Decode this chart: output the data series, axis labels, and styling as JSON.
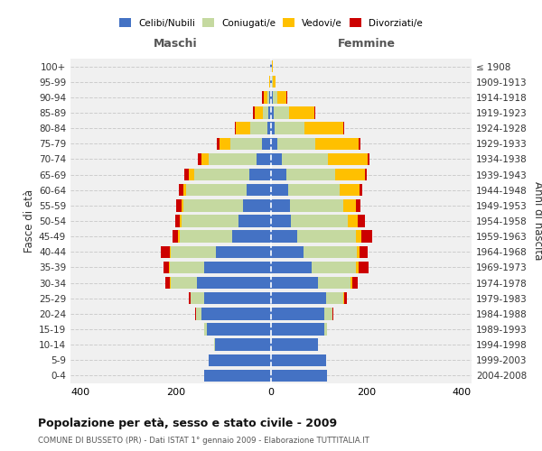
{
  "age_groups_bottom_to_top": [
    "0-4",
    "5-9",
    "10-14",
    "15-19",
    "20-24",
    "25-29",
    "30-34",
    "35-39",
    "40-44",
    "45-49",
    "50-54",
    "55-59",
    "60-64",
    "65-69",
    "70-74",
    "75-79",
    "80-84",
    "85-89",
    "90-94",
    "95-99",
    "100+"
  ],
  "birth_years_bottom_to_top": [
    "2004-2008",
    "1999-2003",
    "1994-1998",
    "1989-1993",
    "1984-1988",
    "1979-1983",
    "1974-1978",
    "1969-1973",
    "1964-1968",
    "1959-1963",
    "1954-1958",
    "1949-1953",
    "1944-1948",
    "1939-1943",
    "1934-1938",
    "1929-1933",
    "1924-1928",
    "1919-1923",
    "1914-1918",
    "1909-1913",
    "≤ 1908"
  ],
  "colors": {
    "celibi": "#4472c4",
    "coniugati": "#c5d9a0",
    "vedovi": "#ffc000",
    "divorziati": "#cc0000"
  },
  "maschi": {
    "celibi": [
      140,
      130,
      118,
      135,
      145,
      140,
      155,
      140,
      115,
      82,
      68,
      58,
      52,
      45,
      30,
      18,
      8,
      5,
      4,
      2,
      2
    ],
    "coniugati": [
      0,
      0,
      2,
      5,
      12,
      28,
      55,
      72,
      95,
      110,
      120,
      125,
      125,
      115,
      100,
      68,
      35,
      12,
      4,
      0,
      0
    ],
    "vedovi": [
      0,
      0,
      0,
      0,
      0,
      0,
      2,
      2,
      2,
      3,
      4,
      5,
      6,
      12,
      16,
      22,
      30,
      18,
      8,
      1,
      0
    ],
    "divorziati": [
      0,
      0,
      0,
      0,
      2,
      5,
      10,
      12,
      18,
      12,
      8,
      10,
      10,
      10,
      8,
      6,
      3,
      3,
      2,
      0,
      0
    ]
  },
  "femmine": {
    "celibi": [
      118,
      115,
      98,
      112,
      112,
      115,
      98,
      85,
      68,
      55,
      42,
      40,
      36,
      32,
      22,
      14,
      8,
      6,
      4,
      2,
      1
    ],
    "coniugati": [
      0,
      0,
      0,
      5,
      16,
      36,
      68,
      92,
      112,
      122,
      118,
      112,
      108,
      102,
      98,
      78,
      62,
      32,
      10,
      2,
      0
    ],
    "vedovi": [
      0,
      0,
      0,
      0,
      0,
      2,
      5,
      6,
      6,
      12,
      22,
      26,
      42,
      62,
      82,
      92,
      82,
      52,
      18,
      6,
      2
    ],
    "divorziati": [
      0,
      0,
      0,
      0,
      2,
      5,
      10,
      22,
      16,
      22,
      15,
      10,
      5,
      5,
      5,
      3,
      2,
      2,
      2,
      0,
      0
    ]
  },
  "title": "Popolazione per età, sesso e stato civile - 2009",
  "subtitle": "COMUNE DI BUSSETO (PR) - Dati ISTAT 1° gennaio 2009 - Elaborazione TUTTITALIA.IT",
  "xlabel_left": "Maschi",
  "xlabel_right": "Femmine",
  "ylabel_left": "Fasce di età",
  "ylabel_right": "Anni di nascita",
  "legend_labels": [
    "Celibi/Nubili",
    "Coniugati/e",
    "Vedovi/e",
    "Divorziati/e"
  ],
  "xlim": 420,
  "bg_color": "#ffffff",
  "plot_bg": "#f0f0f0",
  "grid_color": "#cccccc"
}
